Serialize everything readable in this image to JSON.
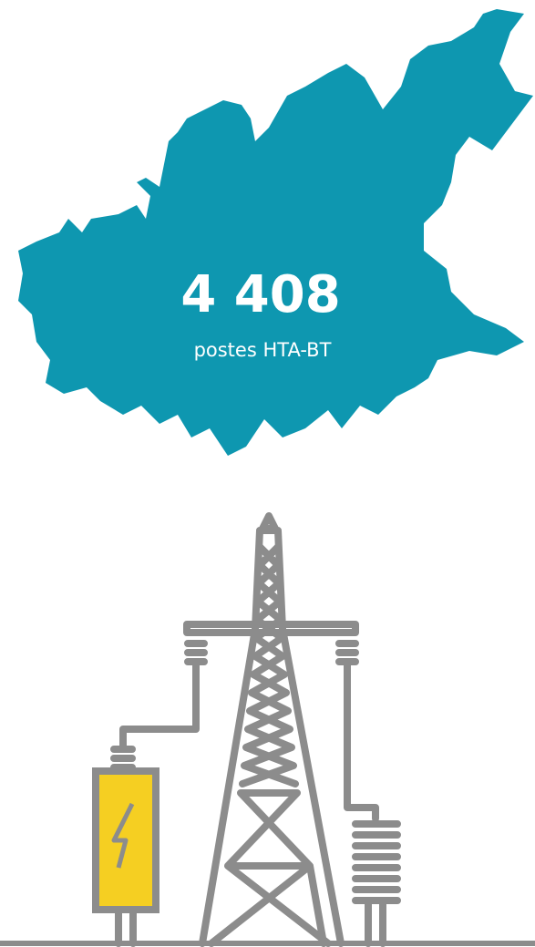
{
  "figure": {
    "count": "4 408",
    "label": "postes HTA-BT"
  }
}
